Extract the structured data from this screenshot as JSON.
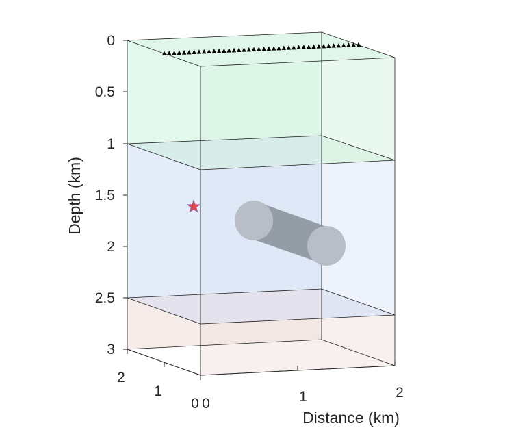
{
  "figure": {
    "ylabel": "Depth (km)",
    "xlabel": "Distance (km)",
    "depth_ticks": [
      "0",
      "0.5",
      "1",
      "1.5",
      "2",
      "2.5",
      "3"
    ],
    "distance_ticks": [
      "0",
      "1",
      "2"
    ],
    "lateral_ticks": [
      "0",
      "1",
      "2"
    ]
  },
  "chart_data": {
    "type": "3d-model-diagram",
    "xlabel": "Distance (km)",
    "ylabel": "Depth (km)",
    "xlim": [
      0,
      2
    ],
    "ylim": [
      0,
      3
    ],
    "depth_direction": "reversed",
    "layers": [
      {
        "top_km": 0,
        "bottom_km": 1.0,
        "color": "#e3f8ec"
      },
      {
        "top_km": 1.0,
        "bottom_km": 2.5,
        "color": "#e3ecf8"
      },
      {
        "top_km": 2.5,
        "bottom_km": 3.0,
        "color": "#f5ece9"
      }
    ],
    "source": {
      "marker": "star",
      "color": "#e0464b",
      "depth_km": 1.63
    },
    "receivers": {
      "marker": "triangle",
      "color": "#000000",
      "depth_km": 0,
      "count": 40
    },
    "cylinder_anomaly": {
      "color": "#8c939c",
      "depth_km_range": [
        1.75,
        2.0
      ]
    }
  }
}
